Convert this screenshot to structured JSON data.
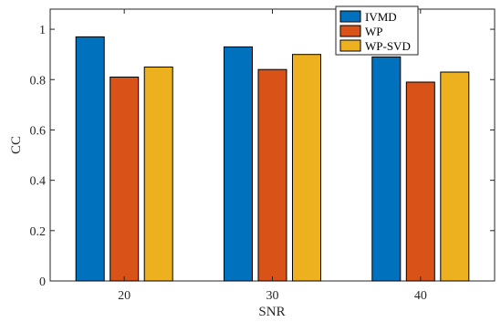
{
  "chart_data": {
    "type": "bar",
    "title": "",
    "xlabel": "SNR",
    "ylabel": "CC",
    "categories": [
      "20",
      "30",
      "40"
    ],
    "series": [
      {
        "name": "IVMD",
        "values": [
          0.97,
          0.93,
          0.89
        ],
        "color": "#0072BD"
      },
      {
        "name": "WP",
        "values": [
          0.81,
          0.84,
          0.79
        ],
        "color": "#D95319"
      },
      {
        "name": "WP-SVD",
        "values": [
          0.85,
          0.9,
          0.83
        ],
        "color": "#EDB120"
      }
    ],
    "ylim": [
      0,
      1.08
    ],
    "yticks": [
      0,
      0.2,
      0.4,
      0.6,
      0.8,
      1
    ],
    "ytick_labels": [
      "0",
      "0.2",
      "0.4",
      "0.6",
      "0.8",
      "1"
    ],
    "legend_position": "top-right",
    "grid": false
  }
}
